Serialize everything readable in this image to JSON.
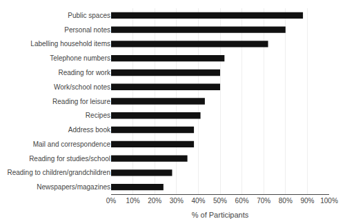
{
  "chart_data": {
    "type": "bar",
    "orientation": "horizontal",
    "categories": [
      "Newspapers/magazines",
      "Reading to children/grandchildren",
      "Reading for studies/school",
      "Mail and correspondence",
      "Address book",
      "Recipes",
      "Reading for leisure",
      "Work/school notes",
      "Reading for work",
      "Telephone numbers",
      "Labelling household items",
      "Personal notes",
      "Public spaces"
    ],
    "values": [
      24,
      28,
      35,
      38,
      38,
      41,
      43,
      50,
      50,
      52,
      72,
      80,
      88
    ],
    "color": "#111111",
    "xlabel": "% of Participants",
    "xlim": [
      0,
      100
    ],
    "xticks": [
      {
        "value": 0,
        "label": "0%"
      },
      {
        "value": 10,
        "label": "10%"
      },
      {
        "value": 20,
        "label": "20%"
      },
      {
        "value": 30,
        "label": "30%"
      },
      {
        "value": 40,
        "label": "40%"
      },
      {
        "value": 50,
        "label": "50%"
      },
      {
        "value": 60,
        "label": "60%"
      },
      {
        "value": 70,
        "label": "70%"
      },
      {
        "value": 80,
        "label": "80%"
      },
      {
        "value": 90,
        "label": "90%"
      },
      {
        "value": 100,
        "label": "100%"
      }
    ],
    "grid": true
  }
}
